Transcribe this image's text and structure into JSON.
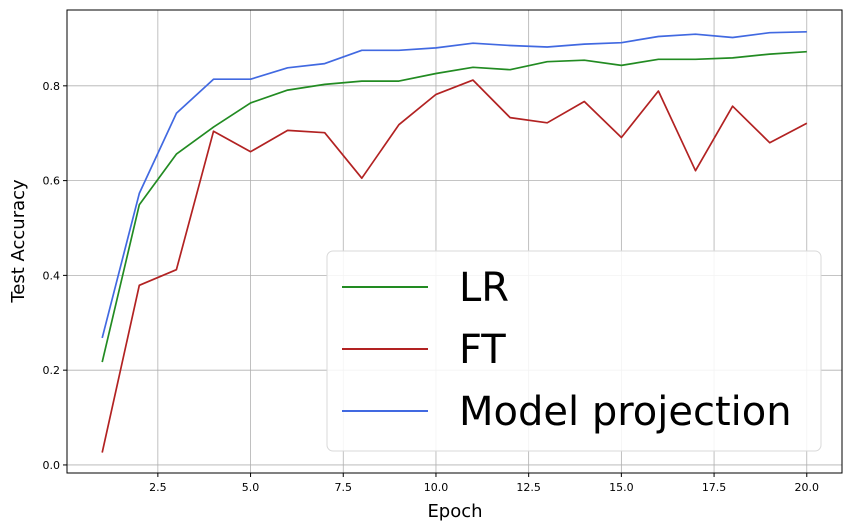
{
  "chart_data": {
    "type": "line",
    "xlabel": "Epoch",
    "ylabel": "Test Accuracy",
    "xlim": [
      0.05,
      20.95
    ],
    "ylim": [
      -0.017,
      0.96
    ],
    "xticks": [
      2.5,
      5.0,
      7.5,
      10.0,
      12.5,
      15.0,
      17.5,
      20.0
    ],
    "xtick_labels": [
      "2.5",
      "5.0",
      "7.5",
      "10.0",
      "12.5",
      "15.0",
      "17.5",
      "20.0"
    ],
    "yticks": [
      0.0,
      0.2,
      0.4,
      0.6,
      0.8
    ],
    "ytick_labels": [
      "0.0",
      "0.2",
      "0.4",
      "0.6",
      "0.8"
    ],
    "grid": true,
    "legend_position": "lower-right",
    "x": [
      1,
      2,
      3,
      4,
      5,
      6,
      7,
      8,
      9,
      10,
      11,
      12,
      13,
      14,
      15,
      16,
      17,
      18,
      19,
      20
    ],
    "series": [
      {
        "name": "LR",
        "color": "#228b22",
        "values": [
          0.217,
          0.549,
          0.656,
          0.713,
          0.764,
          0.791,
          0.803,
          0.81,
          0.81,
          0.826,
          0.839,
          0.834,
          0.851,
          0.854,
          0.843,
          0.856,
          0.856,
          0.859,
          0.867,
          0.872
        ]
      },
      {
        "name": "FT",
        "color": "#b22222",
        "values": [
          0.026,
          0.379,
          0.412,
          0.704,
          0.661,
          0.706,
          0.701,
          0.605,
          0.718,
          0.782,
          0.812,
          0.733,
          0.722,
          0.767,
          0.691,
          0.789,
          0.621,
          0.757,
          0.68,
          0.721
        ]
      },
      {
        "name": "Model projection",
        "color": "#4169e1",
        "values": [
          0.268,
          0.573,
          0.742,
          0.814,
          0.814,
          0.838,
          0.847,
          0.875,
          0.875,
          0.88,
          0.89,
          0.885,
          0.882,
          0.888,
          0.891,
          0.904,
          0.909,
          0.902,
          0.912,
          0.914
        ]
      }
    ]
  }
}
